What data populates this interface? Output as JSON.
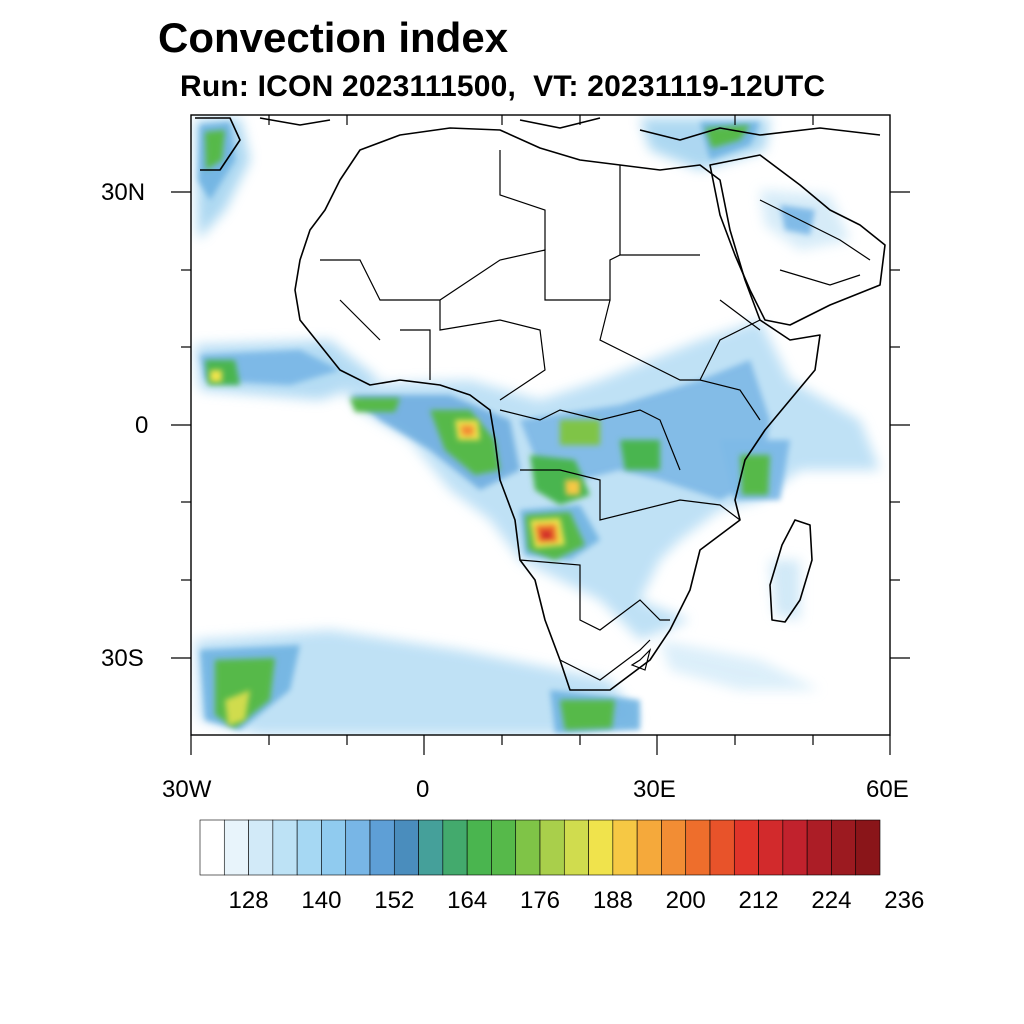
{
  "title": "Convection index",
  "subtitle": "Run: ICON 2023111500,  VT: 20231119-12UTC",
  "map": {
    "region": "Africa and Arabian Peninsula",
    "lon_range": [
      -30,
      60
    ],
    "lat_range": [
      -40,
      40
    ],
    "lon_tick_labels": [
      "30W",
      "0",
      "30E",
      "60E"
    ],
    "lat_tick_labels": [
      "30N",
      "0",
      "30S"
    ],
    "grid": false
  },
  "colorbar": {
    "labels": [
      "128",
      "140",
      "152",
      "164",
      "176",
      "188",
      "200",
      "212",
      "224",
      "236"
    ],
    "colors": [
      "#ffffff",
      "#e8f4fb",
      "#d2eaf8",
      "#bde2f5",
      "#a6d8f3",
      "#90cbef",
      "#78b6e6",
      "#5e9fd6",
      "#4a8dbd",
      "#45a09a",
      "#43aa6d",
      "#4ab54f",
      "#56b94a",
      "#7fc447",
      "#a9cf4b",
      "#d0dc4e",
      "#f0e34c",
      "#f6c844",
      "#f5a93b",
      "#f28d34",
      "#ee6e2c",
      "#e8532a",
      "#e0342a",
      "#d22a2c",
      "#c1222d",
      "#ac1d26",
      "#9c1a20",
      "#8a1519"
    ]
  }
}
